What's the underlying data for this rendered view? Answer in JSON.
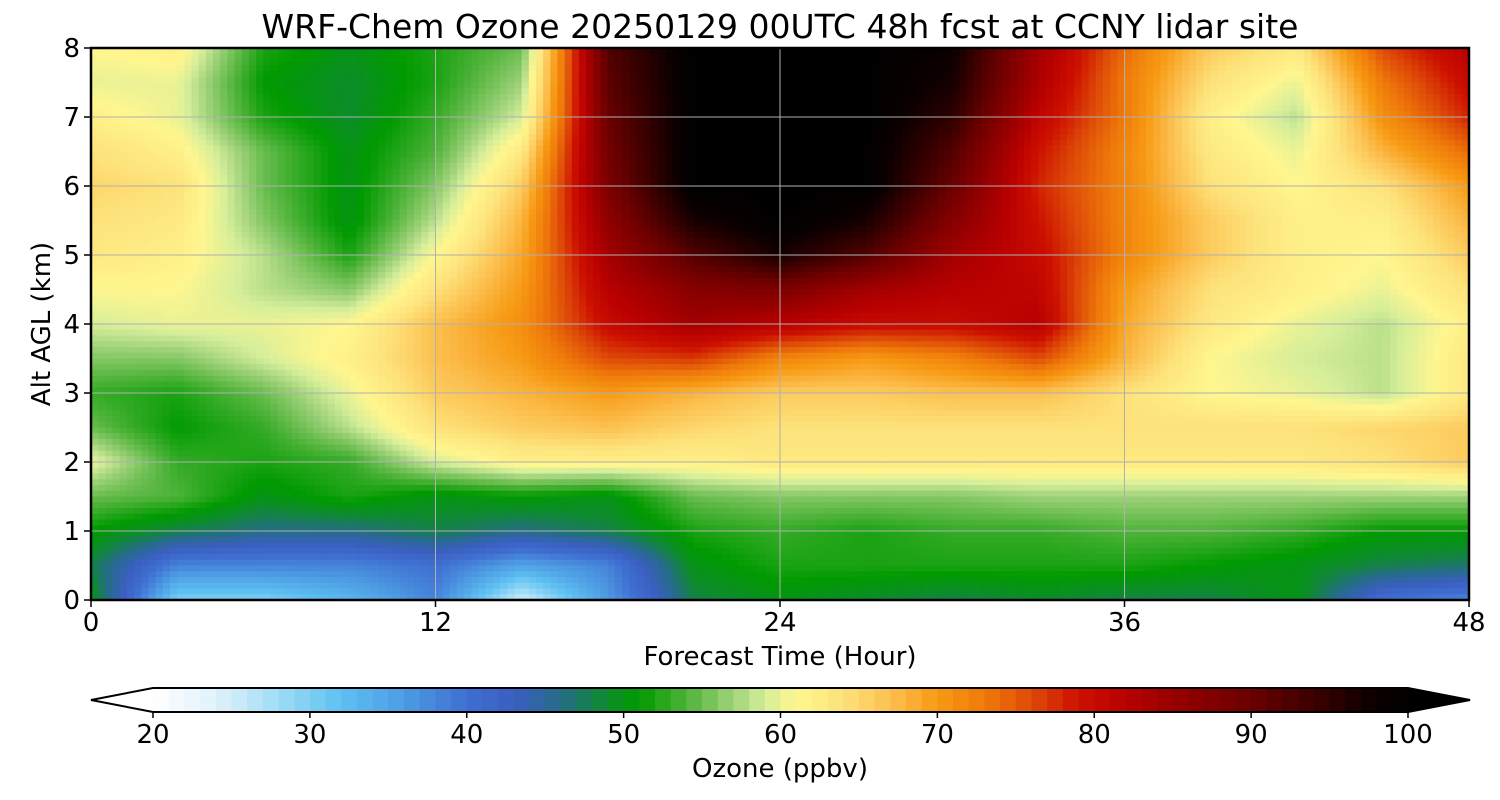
{
  "chart_data": {
    "type": "heatmap",
    "title": "WRF-Chem Ozone  20250129 00UTC 48h fcst at CCNY lidar site",
    "xlabel": "Forecast Time (Hour)",
    "ylabel": "Alt AGL (km)",
    "xlim": [
      0,
      48
    ],
    "ylim": [
      0,
      8
    ],
    "x_ticks": [
      "0",
      "12",
      "24",
      "36",
      "48"
    ],
    "y_ticks": [
      "0",
      "1",
      "2",
      "3",
      "4",
      "5",
      "6",
      "7",
      "8"
    ],
    "grid": true,
    "x": [
      0,
      3,
      6,
      9,
      12,
      15,
      18,
      21,
      24,
      27,
      30,
      33,
      36,
      39,
      42,
      45,
      48
    ],
    "y": [
      0,
      0.5,
      1,
      1.5,
      2,
      2.5,
      3,
      3.5,
      4,
      4.5,
      5,
      5.5,
      6,
      6.5,
      7,
      7.5,
      8
    ],
    "z": [
      [
        50,
        30,
        30,
        33,
        38,
        25,
        36,
        48,
        50,
        49,
        48,
        49,
        48,
        48,
        50,
        40,
        38
      ],
      [
        48,
        38,
        38,
        38,
        40,
        35,
        38,
        50,
        52,
        52,
        52,
        52,
        52,
        51,
        50,
        48,
        47
      ],
      [
        51,
        48,
        46,
        46,
        48,
        46,
        48,
        52,
        53,
        52,
        53,
        53,
        54,
        54,
        53,
        51,
        51
      ],
      [
        55,
        54,
        50,
        52,
        50,
        51,
        50,
        55,
        56,
        56,
        56,
        57,
        57,
        57,
        57,
        57,
        57
      ],
      [
        60,
        53,
        52,
        53,
        59,
        62,
        62,
        62,
        63,
        63,
        63,
        63,
        63,
        63,
        63,
        64,
        66
      ],
      [
        55,
        51,
        53,
        58,
        64,
        66,
        67,
        65,
        64,
        64,
        64,
        64,
        64,
        64,
        64,
        65,
        66
      ],
      [
        53,
        52,
        55,
        60,
        66,
        68,
        70,
        68,
        66,
        66,
        67,
        67,
        64,
        61,
        60,
        58,
        63
      ],
      [
        56,
        56,
        59,
        62,
        67,
        70,
        76,
        77,
        72,
        70,
        72,
        76,
        68,
        61,
        59,
        58,
        63
      ],
      [
        59,
        60,
        60,
        61,
        67,
        71,
        80,
        84,
        82,
        80,
        80,
        82,
        69,
        63,
        60,
        58,
        62
      ],
      [
        61,
        61,
        58,
        56,
        64,
        70,
        82,
        87,
        88,
        84,
        82,
        81,
        70,
        64,
        62,
        60,
        64
      ],
      [
        63,
        62,
        58,
        52,
        61,
        69,
        84,
        92,
        97,
        92,
        84,
        80,
        72,
        66,
        62,
        61,
        66
      ],
      [
        64,
        63,
        56,
        50,
        58,
        68,
        86,
        97,
        100,
        97,
        87,
        79,
        72,
        66,
        62,
        62,
        68
      ],
      [
        65,
        64,
        55,
        50,
        56,
        66,
        88,
        100,
        100,
        100,
        90,
        78,
        72,
        64,
        61,
        64,
        70
      ],
      [
        64,
        62,
        55,
        50,
        54,
        63,
        89,
        100,
        100,
        100,
        92,
        79,
        72,
        63,
        60,
        68,
        74
      ],
      [
        62,
        60,
        52,
        49,
        53,
        59,
        90,
        100,
        100,
        100,
        95,
        81,
        73,
        62,
        58,
        71,
        78
      ],
      [
        60,
        60,
        51,
        49,
        52,
        57,
        91,
        100,
        100,
        100,
        97,
        83,
        73,
        64,
        60,
        73,
        80
      ],
      [
        61,
        62,
        52,
        50,
        52,
        55,
        92,
        100,
        100,
        100,
        98,
        84,
        74,
        66,
        63,
        76,
        82
      ]
    ],
    "colorbar": {
      "label": "Ozone  (ppbv)",
      "min": 20,
      "max": 100,
      "ticks": [
        "20",
        "30",
        "40",
        "50",
        "60",
        "70",
        "80",
        "90",
        "100"
      ],
      "extend": "both",
      "stops": [
        [
          20,
          "#ffffff"
        ],
        [
          24,
          "#e0f2fb"
        ],
        [
          28,
          "#9fdcf5"
        ],
        [
          32,
          "#5ec0f2"
        ],
        [
          36,
          "#4d9be3"
        ],
        [
          40,
          "#3f6fd1"
        ],
        [
          43,
          "#3a5fc0"
        ],
        [
          46,
          "#256c88"
        ],
        [
          49,
          "#0c8c2a"
        ],
        [
          51,
          "#009a00"
        ],
        [
          54,
          "#4fb33a"
        ],
        [
          57,
          "#9fd27a"
        ],
        [
          59,
          "#d6ee9a"
        ],
        [
          61,
          "#fff68f"
        ],
        [
          64,
          "#fde27a"
        ],
        [
          67,
          "#fcc050"
        ],
        [
          70,
          "#f79a14"
        ],
        [
          73,
          "#ef7a0a"
        ],
        [
          76,
          "#de4a08"
        ],
        [
          79,
          "#cc1000"
        ],
        [
          82,
          "#b80000"
        ],
        [
          86,
          "#8f0000"
        ],
        [
          90,
          "#6a0000"
        ],
        [
          94,
          "#3a0000"
        ],
        [
          98,
          "#0a0000"
        ],
        [
          100,
          "#000000"
        ]
      ]
    }
  }
}
